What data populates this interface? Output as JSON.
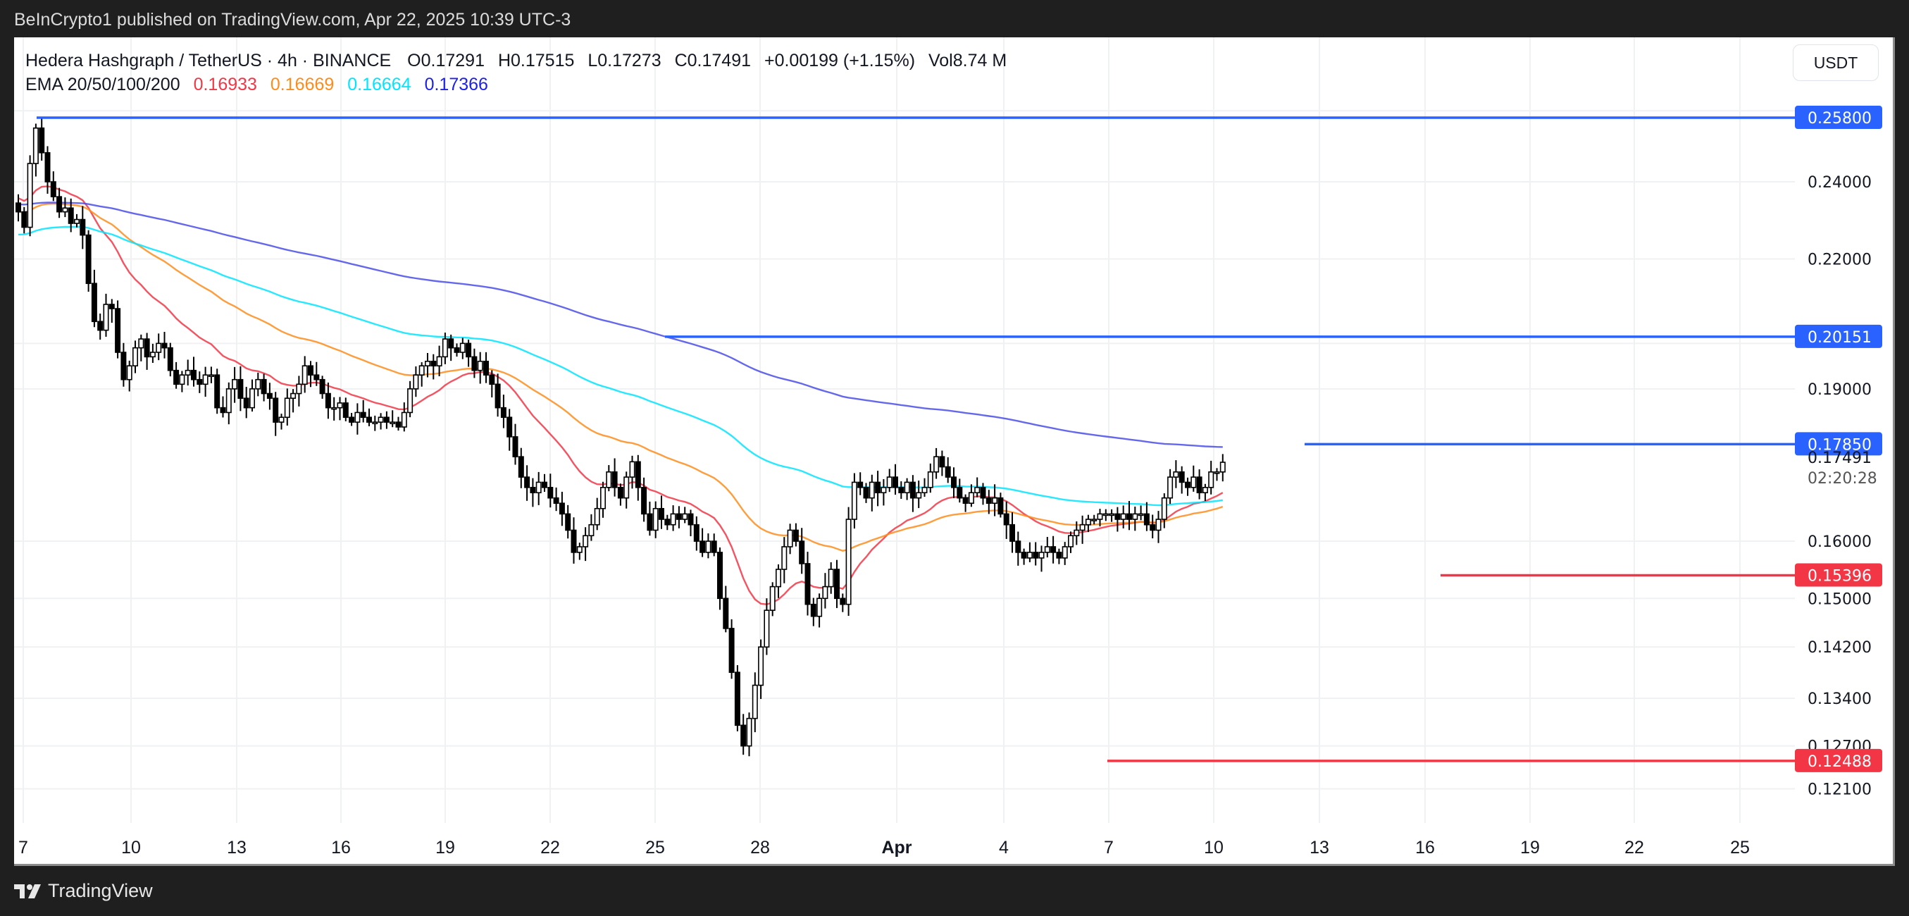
{
  "publish_bar": {
    "text": "BeInCrypto1 published on TradingView.com, Apr 22, 2025 10:39 UTC-3"
  },
  "legend": {
    "symbol": "Hedera Hashgraph / TetherUS · 4h · BINANCE",
    "open": "O0.17291",
    "high": "H0.17515",
    "low": "L0.17273",
    "close": "C0.17491",
    "change": "+0.00199 (+1.15%)",
    "volume": "Vol8.74 M",
    "ema_label": "EMA 20/50/100/200",
    "ema_values": [
      {
        "name": "EMA 20",
        "value": "0.16933",
        "color": "#f23645"
      },
      {
        "name": "EMA 50",
        "value": "0.16669",
        "color": "#ff8c1a"
      },
      {
        "name": "EMA 100",
        "value": "0.16664",
        "color": "#00e5ff"
      },
      {
        "name": "EMA 200",
        "value": "0.17366",
        "color": "#1e22e6"
      }
    ]
  },
  "currency_button": {
    "label": "USDT"
  },
  "footer": {
    "brand": "TradingView"
  },
  "chart_data": {
    "type": "candlestick",
    "title": "Hedera Hashgraph / TetherUS · 4h · BINANCE",
    "xlabel": "",
    "ylabel": "USDT",
    "scale": "log",
    "ylim": [
      0.116,
      0.268
    ],
    "y_ticks": [
      "0.24000",
      "0.22000",
      "0.19000",
      "0.16000",
      "0.15000",
      "0.14200",
      "0.13400",
      "0.12700",
      "0.12100"
    ],
    "x_ticks": [
      "7",
      "10",
      "13",
      "16",
      "19",
      "22",
      "25",
      "28",
      "Apr",
      "4",
      "7",
      "10",
      "13",
      "16",
      "19",
      "22",
      "25"
    ],
    "grid": true,
    "current_price": {
      "value": "0.17491",
      "countdown": "02:20:28"
    },
    "horizontal_levels": [
      {
        "label": "0.25800",
        "value": 0.258,
        "color": "#2962ff",
        "type": "resistance"
      },
      {
        "label": "0.20151",
        "value": 0.20151,
        "color": "#2962ff",
        "type": "resistance"
      },
      {
        "label": "0.17850",
        "value": 0.1785,
        "color": "#2962ff",
        "type": "resistance"
      },
      {
        "label": "0.15396",
        "value": 0.15396,
        "color": "#f23645",
        "type": "support"
      },
      {
        "label": "0.12488",
        "value": 0.12488,
        "color": "#f23645",
        "type": "support"
      }
    ],
    "ema_series": [
      {
        "name": "EMA 20",
        "last": 0.16933,
        "color": "#f23645"
      },
      {
        "name": "EMA 50",
        "last": 0.16669,
        "color": "#ff8c1a"
      },
      {
        "name": "EMA 100",
        "last": 0.16664,
        "color": "#00e5ff"
      },
      {
        "name": "EMA 200",
        "last": 0.17366,
        "color": "#1e22e6"
      }
    ],
    "close_path_approx": [
      0.232,
      0.228,
      0.245,
      0.255,
      0.248,
      0.24,
      0.236,
      0.232,
      0.233,
      0.229,
      0.23,
      0.226,
      0.214,
      0.205,
      0.203,
      0.209,
      0.208,
      0.198,
      0.192,
      0.195,
      0.199,
      0.201,
      0.197,
      0.198,
      0.2,
      0.199,
      0.194,
      0.191,
      0.193,
      0.194,
      0.192,
      0.191,
      0.193,
      0.193,
      0.186,
      0.185,
      0.19,
      0.192,
      0.188,
      0.186,
      0.19,
      0.192,
      0.189,
      0.188,
      0.183,
      0.184,
      0.188,
      0.189,
      0.191,
      0.195,
      0.193,
      0.192,
      0.189,
      0.186,
      0.186,
      0.187,
      0.184,
      0.183,
      0.185,
      0.184,
      0.183,
      0.183,
      0.184,
      0.183,
      0.183,
      0.182,
      0.185,
      0.19,
      0.193,
      0.195,
      0.196,
      0.195,
      0.197,
      0.201,
      0.199,
      0.198,
      0.2,
      0.197,
      0.194,
      0.196,
      0.193,
      0.191,
      0.186,
      0.184,
      0.18,
      0.176,
      0.172,
      0.17,
      0.169,
      0.171,
      0.17,
      0.168,
      0.167,
      0.165,
      0.162,
      0.158,
      0.159,
      0.161,
      0.163,
      0.166,
      0.17,
      0.173,
      0.17,
      0.168,
      0.172,
      0.175,
      0.17,
      0.165,
      0.162,
      0.166,
      0.164,
      0.163,
      0.165,
      0.164,
      0.165,
      0.163,
      0.16,
      0.158,
      0.16,
      0.158,
      0.15,
      0.145,
      0.138,
      0.13,
      0.127,
      0.131,
      0.136,
      0.142,
      0.148,
      0.152,
      0.155,
      0.159,
      0.162,
      0.16,
      0.156,
      0.149,
      0.147,
      0.15,
      0.152,
      0.155,
      0.15,
      0.149,
      0.164,
      0.171,
      0.17,
      0.168,
      0.171,
      0.169,
      0.17,
      0.172,
      0.17,
      0.169,
      0.171,
      0.168,
      0.169,
      0.17,
      0.173,
      0.176,
      0.174,
      0.172,
      0.17,
      0.168,
      0.167,
      0.169,
      0.17,
      0.168,
      0.167,
      0.168,
      0.165,
      0.163,
      0.16,
      0.158,
      0.157,
      0.158,
      0.157,
      0.158,
      0.159,
      0.158,
      0.157,
      0.159,
      0.161,
      0.162,
      0.163,
      0.164,
      0.164,
      0.165,
      0.165,
      0.165,
      0.164,
      0.165,
      0.164,
      0.165,
      0.165,
      0.163,
      0.162,
      0.164,
      0.168,
      0.172,
      0.173,
      0.171,
      0.17,
      0.172,
      0.169,
      0.17,
      0.173,
      0.173,
      0.1749
    ]
  }
}
